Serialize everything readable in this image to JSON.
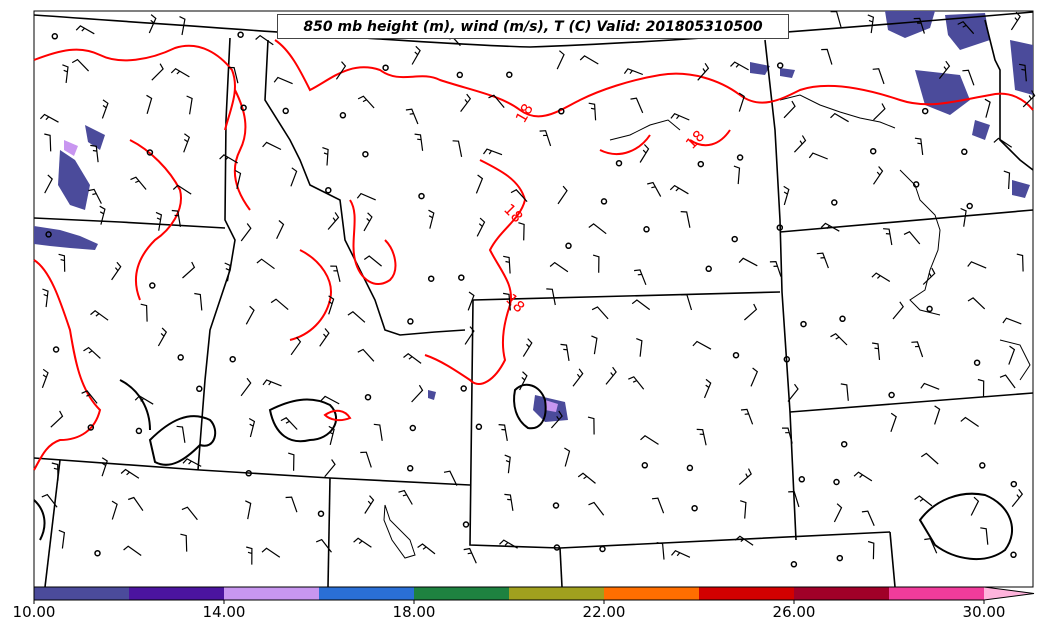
{
  "title": "850 mb height (m), wind (m/s), T (C) Valid: 201805310500",
  "contour_label": "18",
  "colorbar": {
    "ticks": [
      "10.00",
      "14.00",
      "18.00",
      "22.00",
      "26.00",
      "30.00"
    ],
    "range": [
      10,
      32
    ],
    "colors": [
      "#4b4b9b",
      "#4b149f",
      "#c896f0",
      "#2a6fd6",
      "#1e8240",
      "#a0a01e",
      "#ff6e00",
      "#d20000",
      "#a00028",
      "#f03c9b",
      "#ffb4dc"
    ]
  },
  "colors": {
    "isotherm": "#ff0000",
    "fill_low": "#4b4b9b",
    "fill_mid": "#c896f0",
    "lines": "#000000"
  }
}
